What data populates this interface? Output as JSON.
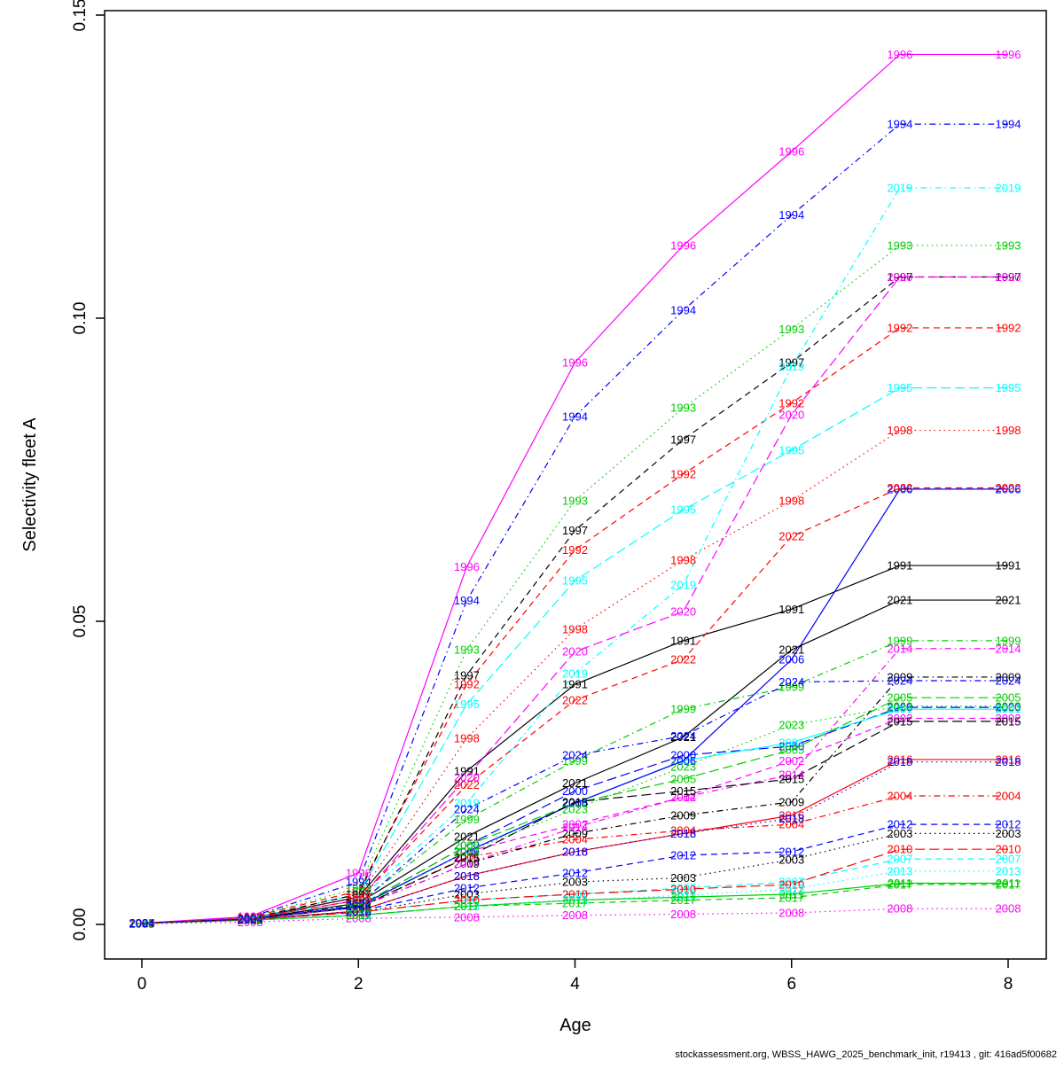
{
  "meta": {
    "footer": "stockassessment.org, WBSS_HAWG_2025_benchmark_init, r19413 , git: 416ad5f00682"
  },
  "chart_data": {
    "type": "line",
    "title": "",
    "xlabel": "Age",
    "ylabel": "Selectivity fleet A",
    "x": [
      0,
      1,
      2,
      3,
      4,
      5,
      6,
      7,
      8
    ],
    "xlim": [
      0,
      8
    ],
    "ylim": [
      0,
      0.15
    ],
    "xticks": [
      0,
      2,
      4,
      6,
      8
    ],
    "xtick_labels": [
      "0",
      "2",
      "4",
      "6",
      "8"
    ],
    "yticks": [
      0,
      0.05,
      0.1,
      0.15
    ],
    "ytick_labels": [
      "0.00",
      "0.05",
      "0.10",
      "0.15"
    ],
    "grid": false,
    "legend_position": "none",
    "label_style": "year-printed-at-each-data-point",
    "palette": {
      "black": "#000000",
      "red": "#FF0000",
      "green": "#00CD00",
      "blue": "#0000FF",
      "cyan": "#00FFFF",
      "magenta": "#FF00FF"
    },
    "series": [
      {
        "name": "1991",
        "color": "#000000",
        "linetype": "solid",
        "values": [
          0.0002,
          0.001,
          0.0045,
          0.0253,
          0.0396,
          0.0468,
          0.052,
          0.0592,
          0.0592
        ]
      },
      {
        "name": "1992",
        "color": "#FF0000",
        "linetype": "dashed",
        "values": [
          0.0002,
          0.0012,
          0.0055,
          0.0396,
          0.0618,
          0.0743,
          0.086,
          0.0984,
          0.0984
        ]
      },
      {
        "name": "1993",
        "color": "#00CD00",
        "linetype": "dotted",
        "values": [
          0.0002,
          0.0012,
          0.006,
          0.0453,
          0.0699,
          0.0852,
          0.0982,
          0.112,
          0.112
        ]
      },
      {
        "name": "1994",
        "color": "#0000FF",
        "linetype": "dotdash",
        "values": [
          0.0002,
          0.0012,
          0.007,
          0.0534,
          0.0838,
          0.1013,
          0.117,
          0.132,
          0.132
        ]
      },
      {
        "name": "1995",
        "color": "#00FFFF",
        "linetype": "longdash",
        "values": [
          0.0002,
          0.001,
          0.005,
          0.0363,
          0.0567,
          0.0684,
          0.0782,
          0.0885,
          0.0885
        ]
      },
      {
        "name": "1996",
        "color": "#FF00FF",
        "linetype": "solid",
        "values": [
          0.0002,
          0.0013,
          0.0085,
          0.059,
          0.0927,
          0.112,
          0.1275,
          0.1435,
          0.1435
        ]
      },
      {
        "name": "1997",
        "color": "#000000",
        "linetype": "dashed",
        "values": [
          0.0002,
          0.001,
          0.005,
          0.0411,
          0.065,
          0.08,
          0.0927,
          0.1068,
          0.1068
        ]
      },
      {
        "name": "1998",
        "color": "#FF0000",
        "linetype": "dotted",
        "values": [
          0.0002,
          0.001,
          0.0045,
          0.0307,
          0.0487,
          0.0601,
          0.0699,
          0.0815,
          0.0815
        ]
      },
      {
        "name": "1999",
        "color": "#00CD00",
        "linetype": "dotdash",
        "values": [
          0.0002,
          0.001,
          0.0035,
          0.0173,
          0.027,
          0.0355,
          0.0392,
          0.0468,
          0.0468
        ]
      },
      {
        "name": "2000",
        "color": "#0000FF",
        "linetype": "longdash",
        "values": [
          0.0002,
          0.0009,
          0.003,
          0.013,
          0.022,
          0.0279,
          0.0294,
          0.0358,
          0.0358
        ]
      },
      {
        "name": "2001",
        "color": "#00FFFF",
        "linetype": "solid",
        "values": [
          0.0002,
          0.0009,
          0.003,
          0.012,
          0.02,
          0.027,
          0.03,
          0.0355,
          0.0355
        ]
      },
      {
        "name": "2002",
        "color": "#FF00FF",
        "linetype": "dashed",
        "values": [
          0.0002,
          0.0009,
          0.003,
          0.012,
          0.0165,
          0.021,
          0.027,
          0.034,
          0.034
        ]
      },
      {
        "name": "2003",
        "color": "#000000",
        "linetype": "dotted",
        "values": [
          0.0002,
          0.0008,
          0.002,
          0.005,
          0.007,
          0.0077,
          0.0107,
          0.015,
          0.015
        ]
      },
      {
        "name": "2004",
        "color": "#FF0000",
        "linetype": "dotdash",
        "values": [
          0.0002,
          0.0009,
          0.0028,
          0.0111,
          0.014,
          0.0155,
          0.0165,
          0.0212,
          0.0212
        ]
      },
      {
        "name": "2005",
        "color": "#00CD00",
        "linetype": "longdash",
        "values": [
          0.0002,
          0.0009,
          0.003,
          0.013,
          0.02,
          0.024,
          0.0288,
          0.0374,
          0.0374
        ]
      },
      {
        "name": "2006",
        "color": "#0000FF",
        "linetype": "solid",
        "values": [
          0.0002,
          0.0009,
          0.003,
          0.012,
          0.02,
          0.027,
          0.0437,
          0.0718,
          0.0718
        ]
      },
      {
        "name": "2007",
        "color": "#00FFFF",
        "linetype": "dashed",
        "values": [
          0.0002,
          0.0008,
          0.002,
          0.004,
          0.005,
          0.006,
          0.007,
          0.0108,
          0.0108
        ]
      },
      {
        "name": "2008",
        "color": "#FF00FF",
        "linetype": "dotted",
        "values": [
          0.0001,
          0.0004,
          0.001,
          0.0012,
          0.0015,
          0.0017,
          0.0019,
          0.0026,
          0.0026
        ]
      },
      {
        "name": "2009",
        "color": "#000000",
        "linetype": "dotdash",
        "values": [
          0.0002,
          0.0009,
          0.0028,
          0.01,
          0.015,
          0.018,
          0.0202,
          0.0408,
          0.0408
        ]
      },
      {
        "name": "2010",
        "color": "#FF0000",
        "linetype": "longdash",
        "values": [
          0.0002,
          0.0008,
          0.002,
          0.004,
          0.005,
          0.0058,
          0.0066,
          0.0124,
          0.0124
        ]
      },
      {
        "name": "2011",
        "color": "#00CD00",
        "linetype": "solid",
        "values": [
          0.0002,
          0.0007,
          0.0015,
          0.003,
          0.004,
          0.0045,
          0.005,
          0.0068,
          0.0068
        ]
      },
      {
        "name": "2012",
        "color": "#0000FF",
        "linetype": "dashed",
        "values": [
          0.0002,
          0.0008,
          0.0022,
          0.006,
          0.0085,
          0.0114,
          0.012,
          0.0165,
          0.0165
        ]
      },
      {
        "name": "2013",
        "color": "#00FFFF",
        "linetype": "dotted",
        "values": [
          0.0002,
          0.0007,
          0.0015,
          0.003,
          0.004,
          0.0048,
          0.0058,
          0.0088,
          0.0088
        ]
      },
      {
        "name": "2014",
        "color": "#FF00FF",
        "linetype": "dotdash",
        "values": [
          0.0002,
          0.0009,
          0.0028,
          0.01,
          0.016,
          0.021,
          0.0247,
          0.0455,
          0.0455
        ]
      },
      {
        "name": "2015",
        "color": "#000000",
        "linetype": "longdash",
        "values": [
          0.0002,
          0.0009,
          0.0028,
          0.011,
          0.0202,
          0.022,
          0.024,
          0.0335,
          0.0335
        ]
      },
      {
        "name": "2016",
        "color": "#FF0000",
        "linetype": "solid",
        "values": [
          0.0002,
          0.0008,
          0.0022,
          0.008,
          0.012,
          0.015,
          0.018,
          0.0272,
          0.0272
        ]
      },
      {
        "name": "2017",
        "color": "#00CD00",
        "linetype": "dashed",
        "values": [
          0.0002,
          0.0007,
          0.0015,
          0.003,
          0.0035,
          0.004,
          0.0044,
          0.0066,
          0.0066
        ]
      },
      {
        "name": "2018",
        "color": "#0000FF",
        "linetype": "dotted",
        "values": [
          0.0002,
          0.0008,
          0.0022,
          0.008,
          0.012,
          0.015,
          0.0175,
          0.0268,
          0.0268
        ]
      },
      {
        "name": "2019",
        "color": "#00FFFF",
        "linetype": "dotdash",
        "values": [
          0.0002,
          0.001,
          0.004,
          0.02,
          0.0414,
          0.056,
          0.092,
          0.1215,
          0.1215
        ]
      },
      {
        "name": "2020",
        "color": "#FF00FF",
        "linetype": "longdash",
        "values": [
          0.0002,
          0.001,
          0.004,
          0.0243,
          0.045,
          0.0516,
          0.0841,
          0.1068,
          0.1068
        ]
      },
      {
        "name": "2021",
        "color": "#000000",
        "linetype": "solid",
        "values": [
          0.0002,
          0.0009,
          0.0035,
          0.0145,
          0.0233,
          0.0309,
          0.0453,
          0.0535,
          0.0535
        ]
      },
      {
        "name": "2022",
        "color": "#FF0000",
        "linetype": "dashed",
        "values": [
          0.0002,
          0.001,
          0.004,
          0.023,
          0.037,
          0.0437,
          0.064,
          0.072,
          0.072
        ]
      },
      {
        "name": "2023",
        "color": "#00CD00",
        "linetype": "dotted",
        "values": [
          0.0002,
          0.0009,
          0.0028,
          0.012,
          0.019,
          0.026,
          0.0329,
          0.036,
          0.036
        ]
      },
      {
        "name": "2024",
        "color": "#0000FF",
        "linetype": "dotdash",
        "values": [
          0.0002,
          0.0009,
          0.0032,
          0.019,
          0.0279,
          0.0311,
          0.04,
          0.0402,
          0.0402
        ]
      }
    ]
  }
}
